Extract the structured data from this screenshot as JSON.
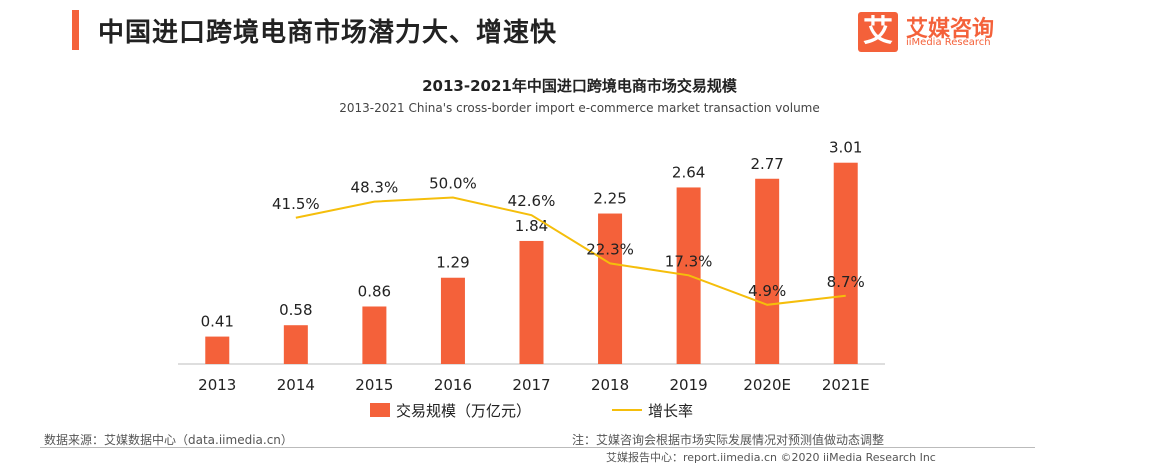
{
  "header": {
    "title": "中国进口跨境电商市场潜力大、增速快",
    "logo_mark": "艾",
    "logo_cn": "艾媒咨询",
    "logo_en": "iiMedia Research"
  },
  "colors": {
    "bar": "#f4613a",
    "line": "#f5be0b",
    "text": "#222222"
  },
  "chart_data": {
    "type": "bar",
    "title": "2013-2021年中国进口跨境电商市场交易规模",
    "subtitle": "2013-2021 China's cross-border import e-commerce market transaction volume",
    "categories": [
      "2013",
      "2014",
      "2015",
      "2016",
      "2017",
      "2018",
      "2019",
      "2020E",
      "2021E"
    ],
    "series": [
      {
        "name": "交易规模（万亿元）",
        "type": "bar",
        "values": [
          0.41,
          0.58,
          0.86,
          1.29,
          1.84,
          2.25,
          2.64,
          2.77,
          3.01
        ],
        "labels": [
          "0.41",
          "0.58",
          "0.86",
          "1.29",
          "1.84",
          "2.25",
          "2.64",
          "2.77",
          "3.01"
        ]
      },
      {
        "name": "增长率",
        "type": "line",
        "values": [
          null,
          41.5,
          48.3,
          50.0,
          42.6,
          22.3,
          17.3,
          4.9,
          8.7
        ],
        "labels": [
          "",
          "41.5%",
          "48.3%",
          "50.0%",
          "42.6%",
          "22.3%",
          "17.3%",
          "4.9%",
          "8.7%"
        ]
      }
    ],
    "ylim": [
      0,
      3.2
    ],
    "y2lim": [
      -20,
      70
    ],
    "legend": "bottom-center",
    "grid": false
  },
  "footer": {
    "source": "数据来源：艾媒数据中心（data.iimedia.cn）",
    "note": "注：艾媒咨询会根据市场实际发展情况对预测值做动态调整",
    "copyright": "艾媒报告中心：report.iimedia.cn   ©2020  iiMedia Research  Inc"
  }
}
